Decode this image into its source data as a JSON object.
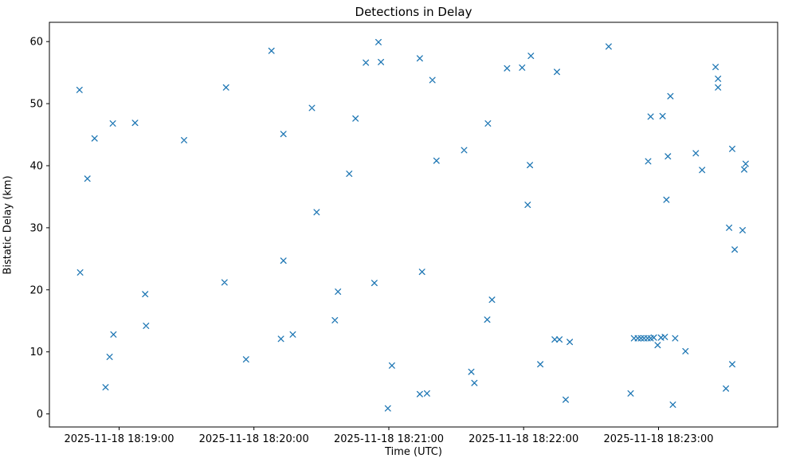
{
  "chart_data": {
    "type": "scatter",
    "title": "Detections in Delay",
    "xlabel": "Time (UTC)",
    "ylabel": "Bistatic Delay (km)",
    "marker": "x",
    "marker_color": "#1f77b4",
    "legend": "none",
    "grid": false,
    "x_unit": "seconds relative to 2025-11-18 18:19:00 UTC",
    "x_ticks": [
      "2025-11-18 18:19:00",
      "2025-11-18 18:20:00",
      "2025-11-18 18:21:00",
      "2025-11-18 18:22:00",
      "2025-11-18 18:23:00"
    ],
    "x_tick_seconds": [
      0,
      60,
      120,
      180,
      240
    ],
    "xlim_seconds": [
      -31,
      293
    ],
    "y_ticks": [
      0,
      10,
      20,
      30,
      40,
      50,
      60
    ],
    "ylim": [
      -2.1,
      63.1
    ],
    "points": [
      [
        -17.6,
        52.2
      ],
      [
        -17.3,
        22.8
      ],
      [
        -14.1,
        37.9
      ],
      [
        -10.9,
        44.4
      ],
      [
        -6.0,
        4.3
      ],
      [
        -4.2,
        9.2
      ],
      [
        -2.8,
        46.8
      ],
      [
        -2.5,
        12.8
      ],
      [
        7.1,
        46.9
      ],
      [
        11.6,
        19.3
      ],
      [
        12.0,
        14.2
      ],
      [
        28.9,
        44.1
      ],
      [
        46.9,
        21.2
      ],
      [
        47.6,
        52.6
      ],
      [
        56.5,
        8.8
      ],
      [
        67.8,
        58.5
      ],
      [
        72.0,
        12.1
      ],
      [
        73.1,
        45.1
      ],
      [
        73.1,
        24.7
      ],
      [
        77.3,
        12.8
      ],
      [
        85.8,
        49.3
      ],
      [
        87.9,
        32.5
      ],
      [
        96.0,
        15.1
      ],
      [
        97.4,
        19.7
      ],
      [
        102.4,
        38.7
      ],
      [
        105.2,
        47.6
      ],
      [
        109.8,
        56.6
      ],
      [
        113.6,
        21.1
      ],
      [
        115.4,
        59.9
      ],
      [
        116.5,
        56.7
      ],
      [
        119.6,
        0.9
      ],
      [
        121.4,
        7.8
      ],
      [
        133.8,
        57.3
      ],
      [
        133.8,
        3.2
      ],
      [
        134.8,
        22.9
      ],
      [
        137.0,
        3.3
      ],
      [
        139.4,
        53.8
      ],
      [
        141.2,
        40.8
      ],
      [
        153.5,
        42.5
      ],
      [
        156.7,
        6.8
      ],
      [
        158.1,
        5.0
      ],
      [
        163.8,
        15.2
      ],
      [
        164.1,
        46.8
      ],
      [
        165.9,
        18.4
      ],
      [
        172.6,
        55.7
      ],
      [
        179.3,
        55.8
      ],
      [
        181.8,
        33.7
      ],
      [
        182.8,
        40.1
      ],
      [
        183.2,
        57.7
      ],
      [
        187.4,
        8.0
      ],
      [
        193.8,
        12.0
      ],
      [
        194.8,
        55.1
      ],
      [
        195.9,
        12.0
      ],
      [
        198.7,
        2.3
      ],
      [
        200.5,
        11.6
      ],
      [
        217.8,
        59.2
      ],
      [
        227.6,
        3.3
      ],
      [
        229.1,
        12.2
      ],
      [
        230.8,
        12.2
      ],
      [
        232.2,
        12.2
      ],
      [
        233.6,
        12.2
      ],
      [
        235.1,
        12.2
      ],
      [
        235.4,
        40.7
      ],
      [
        236.5,
        47.9
      ],
      [
        236.5,
        12.2
      ],
      [
        237.9,
        12.3
      ],
      [
        239.6,
        11.1
      ],
      [
        241.1,
        12.3
      ],
      [
        241.8,
        48.0
      ],
      [
        242.8,
        12.4
      ],
      [
        243.5,
        34.5
      ],
      [
        244.2,
        41.5
      ],
      [
        245.3,
        51.2
      ],
      [
        246.4,
        1.5
      ],
      [
        247.4,
        12.2
      ],
      [
        252.0,
        10.1
      ],
      [
        256.6,
        42.0
      ],
      [
        259.4,
        39.3
      ],
      [
        265.4,
        55.9
      ],
      [
        266.5,
        54.0
      ],
      [
        266.5,
        52.6
      ],
      [
        270.0,
        4.1
      ],
      [
        271.4,
        30.0
      ],
      [
        272.8,
        42.7
      ],
      [
        272.8,
        8.0
      ],
      [
        273.9,
        26.5
      ],
      [
        277.4,
        29.6
      ],
      [
        278.1,
        39.4
      ],
      [
        278.8,
        40.3
      ]
    ]
  }
}
